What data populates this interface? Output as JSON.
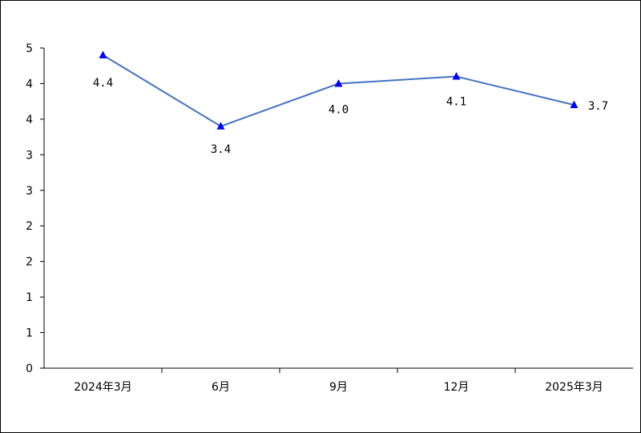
{
  "chart_data": {
    "type": "line",
    "title": "",
    "xlabel": "",
    "ylabel": "",
    "categories": [
      "2024年3月",
      "6月",
      "9月",
      "12月",
      "2025年3月"
    ],
    "series": [
      {
        "values": [
          4.4,
          3.4,
          4.0,
          4.1,
          3.7
        ],
        "value_labels": [
          "4.4",
          "3.4",
          "4.0",
          "4.1",
          "3.7"
        ],
        "color": "#4472C4",
        "marker": "triangle",
        "marker_color": "#0000FF"
      }
    ],
    "ylim": [
      0,
      4.5
    ],
    "y_ticks": [
      0,
      0.5,
      1,
      1.5,
      2,
      2.5,
      3,
      3.5,
      4,
      4.5
    ],
    "y_tick_labels": [
      "0",
      "1",
      "1",
      "2",
      "2",
      "3",
      "3",
      "4",
      "4",
      "5"
    ],
    "grid": false,
    "legend": "none"
  }
}
